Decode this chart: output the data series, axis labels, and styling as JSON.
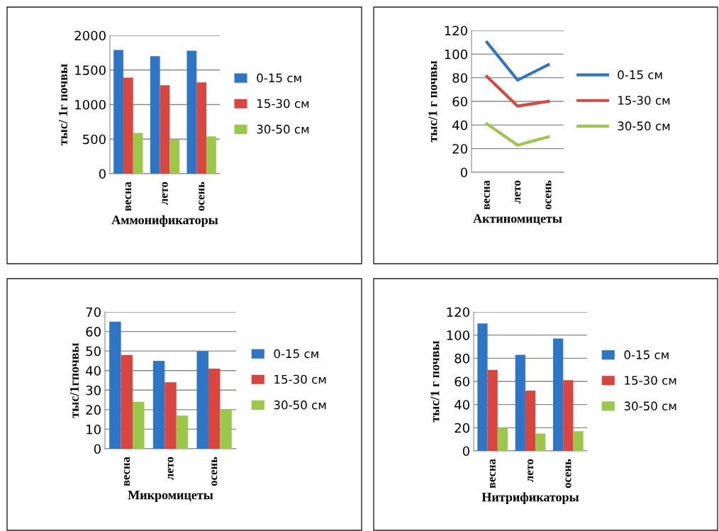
{
  "chart_data": [
    {
      "type": "bar",
      "xlabel": "Аммонификаторы",
      "ylabel": "тыс/ 1г почвы",
      "categories": [
        "весна",
        "лето",
        "осень"
      ],
      "ylim": [
        0,
        2000
      ],
      "yticks": [
        0,
        500,
        1000,
        1500,
        2000
      ],
      "grid": "y",
      "legend": "right",
      "series": [
        {
          "name": "0-15 см",
          "color": "#2e75c6",
          "values": [
            1790,
            1700,
            1780
          ]
        },
        {
          "name": "15-30 см",
          "color": "#d9453f",
          "values": [
            1390,
            1280,
            1320
          ]
        },
        {
          "name": "30-50 см",
          "color": "#9bc84b",
          "values": [
            590,
            490,
            540
          ]
        }
      ]
    },
    {
      "type": "line",
      "xlabel": "Актиномицеты",
      "ylabel": "тыс/1 г почвы",
      "categories": [
        "весна",
        "лето",
        "осень"
      ],
      "ylim": [
        0,
        120
      ],
      "yticks": [
        0,
        20,
        40,
        60,
        80,
        100,
        120
      ],
      "grid": "y",
      "legend": "right",
      "marker": "none",
      "series": [
        {
          "name": "0-15 см",
          "color": "#2e75c6",
          "values": [
            110,
            78,
            91
          ]
        },
        {
          "name": "15-30 см",
          "color": "#d9453f",
          "values": [
            81,
            56,
            60
          ]
        },
        {
          "name": "30-50 см",
          "color": "#9bc84b",
          "values": [
            41,
            23,
            30
          ]
        }
      ]
    },
    {
      "type": "bar",
      "xlabel": "Микромицеты",
      "ylabel": "тыс/1гпочвы",
      "categories": [
        "весна",
        "лето",
        "осень"
      ],
      "ylim": [
        0,
        70
      ],
      "yticks": [
        0,
        10,
        20,
        30,
        40,
        50,
        60,
        70
      ],
      "grid": "y",
      "legend": "right",
      "series": [
        {
          "name": "0-15 см",
          "color": "#2e75c6",
          "values": [
            65,
            45,
            50
          ]
        },
        {
          "name": "15-30 см",
          "color": "#d9453f",
          "values": [
            48,
            34,
            41
          ]
        },
        {
          "name": "30-50 см",
          "color": "#9bc84b",
          "values": [
            24,
            17,
            20
          ]
        }
      ]
    },
    {
      "type": "bar",
      "xlabel": "Нитрификаторы",
      "ylabel": "тыс/1 г почвы",
      "categories": [
        "весна",
        "лето",
        "осень"
      ],
      "ylim": [
        0,
        120
      ],
      "yticks": [
        0,
        20,
        40,
        60,
        80,
        100,
        120
      ],
      "grid": "y",
      "legend": "right",
      "series": [
        {
          "name": "0-15 см",
          "color": "#2e75c6",
          "values": [
            110,
            83,
            97
          ]
        },
        {
          "name": "15-30 см",
          "color": "#d9453f",
          "values": [
            70,
            52,
            61
          ]
        },
        {
          "name": "30-50 см",
          "color": "#9bc84b",
          "values": [
            20,
            15,
            17
          ]
        }
      ]
    }
  ]
}
